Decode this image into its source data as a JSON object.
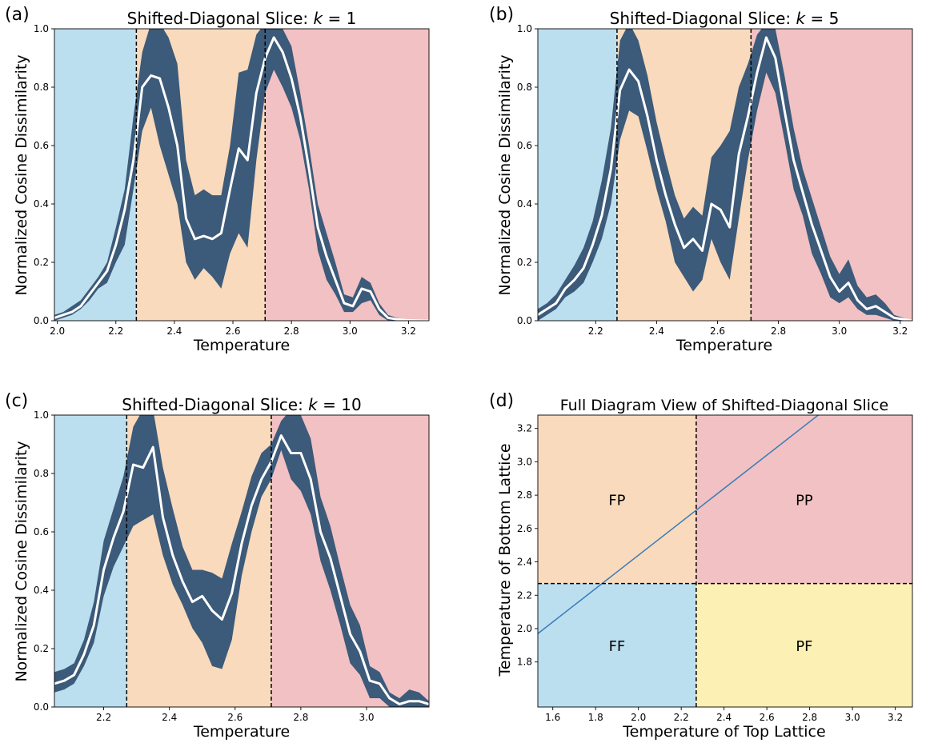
{
  "colors": {
    "ferro": "#bcdff0",
    "frustrated": "#f9dabc",
    "para": "#f2c1c3",
    "pf": "#fcf0b4",
    "band": "#3c5a79",
    "mean": "#ffffff",
    "diag_line": "#3a7cb8",
    "dashed": "#000000"
  },
  "chart_data": [
    {
      "panel_label": "(a)",
      "type": "area",
      "title": "Shifted-Diagonal Slice: ",
      "title_k": "k",
      "title_eq": " = 1",
      "xlabel": "Temperature",
      "ylabel": "Normalized Cosine Dissimilarity",
      "xlim": [
        1.99,
        3.27
      ],
      "ylim": [
        0,
        1.0
      ],
      "xticks": [
        2.0,
        2.2,
        2.4,
        2.6,
        2.8,
        3.0,
        3.2
      ],
      "yticks": [
        0.0,
        0.2,
        0.4,
        0.6,
        0.8,
        1.0
      ],
      "xtick_labels": [
        "2.0",
        "2.2",
        "2.4",
        "2.6",
        "2.8",
        "3.0",
        "3.2"
      ],
      "ytick_labels": [
        "0.0",
        "0.2",
        "0.4",
        "0.6",
        "0.8",
        "1.0"
      ],
      "regions": [
        {
          "from": 1.99,
          "to": 2.27,
          "color": "ferro"
        },
        {
          "from": 2.27,
          "to": 2.71,
          "color": "frustrated"
        },
        {
          "from": 2.71,
          "to": 3.27,
          "color": "para"
        }
      ],
      "vlines": [
        2.27,
        2.71
      ],
      "x": [
        1.99,
        2.02,
        2.05,
        2.08,
        2.11,
        2.14,
        2.17,
        2.2,
        2.23,
        2.26,
        2.29,
        2.32,
        2.35,
        2.38,
        2.41,
        2.44,
        2.47,
        2.5,
        2.53,
        2.56,
        2.59,
        2.62,
        2.65,
        2.68,
        2.71,
        2.74,
        2.77,
        2.8,
        2.83,
        2.86,
        2.89,
        2.92,
        2.95,
        2.98,
        3.01,
        3.04,
        3.07,
        3.1,
        3.13,
        3.16,
        3.19,
        3.22,
        3.25,
        3.27
      ],
      "mean": [
        0.01,
        0.02,
        0.03,
        0.05,
        0.09,
        0.13,
        0.17,
        0.26,
        0.38,
        0.55,
        0.8,
        0.84,
        0.83,
        0.73,
        0.6,
        0.35,
        0.28,
        0.29,
        0.28,
        0.3,
        0.45,
        0.59,
        0.55,
        0.78,
        0.9,
        0.97,
        0.92,
        0.83,
        0.7,
        0.52,
        0.32,
        0.22,
        0.14,
        0.06,
        0.05,
        0.11,
        0.1,
        0.04,
        0.01,
        0.005,
        0.002,
        0.001,
        0.0,
        0.0
      ],
      "lower": [
        0.0,
        0.01,
        0.02,
        0.04,
        0.07,
        0.11,
        0.13,
        0.2,
        0.26,
        0.45,
        0.65,
        0.73,
        0.6,
        0.5,
        0.4,
        0.2,
        0.14,
        0.18,
        0.15,
        0.11,
        0.23,
        0.3,
        0.25,
        0.55,
        0.78,
        0.86,
        0.8,
        0.73,
        0.62,
        0.45,
        0.24,
        0.14,
        0.09,
        0.03,
        0.03,
        0.06,
        0.07,
        0.02,
        0.0,
        0.0,
        0.0,
        0.0,
        0.0,
        0.0
      ],
      "upper": [
        0.02,
        0.03,
        0.05,
        0.07,
        0.11,
        0.15,
        0.2,
        0.32,
        0.45,
        0.7,
        0.92,
        1.02,
        1.02,
        0.97,
        0.88,
        0.55,
        0.43,
        0.45,
        0.43,
        0.43,
        0.6,
        0.85,
        0.86,
        0.98,
        1.02,
        1.02,
        1.0,
        0.94,
        0.78,
        0.6,
        0.4,
        0.3,
        0.2,
        0.09,
        0.08,
        0.15,
        0.13,
        0.06,
        0.02,
        0.01,
        0.005,
        0.002,
        0.0,
        0.0
      ]
    },
    {
      "panel_label": "(b)",
      "type": "area",
      "title": "Shifted-Diagonal Slice: ",
      "title_k": "k",
      "title_eq": " = 5",
      "xlabel": "Temperature",
      "ylabel": "Normalized Cosine Dissimilarity",
      "xlim": [
        2.01,
        3.24
      ],
      "ylim": [
        0,
        1.0
      ],
      "xticks": [
        2.2,
        2.4,
        2.6,
        2.8,
        3.0,
        3.2
      ],
      "yticks": [
        0.0,
        0.2,
        0.4,
        0.6,
        0.8,
        1.0
      ],
      "xtick_labels": [
        "2.2",
        "2.4",
        "2.6",
        "2.8",
        "3.0",
        "3.2"
      ],
      "ytick_labels": [
        "0.0",
        "0.2",
        "0.4",
        "0.6",
        "0.8",
        "1.0"
      ],
      "regions": [
        {
          "from": 2.01,
          "to": 2.27,
          "color": "ferro"
        },
        {
          "from": 2.27,
          "to": 2.71,
          "color": "frustrated"
        },
        {
          "from": 2.71,
          "to": 3.24,
          "color": "para"
        }
      ],
      "vlines": [
        2.27,
        2.71
      ],
      "x": [
        2.01,
        2.04,
        2.07,
        2.1,
        2.13,
        2.16,
        2.19,
        2.22,
        2.25,
        2.28,
        2.31,
        2.34,
        2.37,
        2.4,
        2.43,
        2.46,
        2.49,
        2.52,
        2.55,
        2.58,
        2.61,
        2.64,
        2.67,
        2.7,
        2.73,
        2.76,
        2.79,
        2.82,
        2.85,
        2.88,
        2.91,
        2.94,
        2.97,
        3.0,
        3.03,
        3.06,
        3.09,
        3.12,
        3.15,
        3.18,
        3.21,
        3.24
      ],
      "mean": [
        0.02,
        0.04,
        0.06,
        0.11,
        0.14,
        0.18,
        0.26,
        0.36,
        0.52,
        0.79,
        0.86,
        0.82,
        0.7,
        0.55,
        0.43,
        0.33,
        0.25,
        0.28,
        0.24,
        0.4,
        0.38,
        0.32,
        0.57,
        0.7,
        0.85,
        0.97,
        0.9,
        0.72,
        0.55,
        0.44,
        0.33,
        0.24,
        0.15,
        0.1,
        0.13,
        0.07,
        0.04,
        0.05,
        0.03,
        0.01,
        0.005,
        0.0
      ],
      "lower": [
        0.0,
        0.02,
        0.04,
        0.08,
        0.1,
        0.13,
        0.2,
        0.28,
        0.4,
        0.62,
        0.72,
        0.7,
        0.58,
        0.45,
        0.34,
        0.2,
        0.15,
        0.1,
        0.14,
        0.28,
        0.2,
        0.14,
        0.35,
        0.55,
        0.72,
        0.85,
        0.78,
        0.62,
        0.45,
        0.36,
        0.23,
        0.16,
        0.08,
        0.06,
        0.08,
        0.04,
        0.02,
        0.02,
        0.01,
        0.0,
        0.0,
        0.0
      ],
      "upper": [
        0.04,
        0.06,
        0.09,
        0.14,
        0.19,
        0.25,
        0.34,
        0.48,
        0.66,
        0.96,
        1.02,
        0.96,
        0.84,
        0.68,
        0.55,
        0.43,
        0.35,
        0.39,
        0.36,
        0.56,
        0.6,
        0.65,
        0.8,
        0.88,
        0.98,
        1.02,
        1.0,
        0.84,
        0.66,
        0.52,
        0.42,
        0.32,
        0.22,
        0.16,
        0.21,
        0.12,
        0.08,
        0.09,
        0.06,
        0.02,
        0.01,
        0.0
      ]
    },
    {
      "panel_label": "(c)",
      "type": "area",
      "title": "Shifted-Diagonal Slice: ",
      "title_k": "k",
      "title_eq": " = 10",
      "xlabel": "Temperature",
      "ylabel": "Normalized Cosine Dissimilarity",
      "xlim": [
        2.05,
        3.19
      ],
      "ylim": [
        0,
        1.0
      ],
      "xticks": [
        2.2,
        2.4,
        2.6,
        2.8,
        3.0
      ],
      "yticks": [
        0.0,
        0.2,
        0.4,
        0.6,
        0.8,
        1.0
      ],
      "xtick_labels": [
        "2.2",
        "2.4",
        "2.6",
        "2.8",
        "3.0"
      ],
      "ytick_labels": [
        "0.0",
        "0.2",
        "0.4",
        "0.6",
        "0.8",
        "1.0"
      ],
      "regions": [
        {
          "from": 2.05,
          "to": 2.27,
          "color": "ferro"
        },
        {
          "from": 2.27,
          "to": 2.71,
          "color": "frustrated"
        },
        {
          "from": 2.71,
          "to": 3.19,
          "color": "para"
        }
      ],
      "vlines": [
        2.27,
        2.71
      ],
      "x": [
        2.05,
        2.08,
        2.11,
        2.14,
        2.17,
        2.2,
        2.23,
        2.26,
        2.29,
        2.32,
        2.35,
        2.38,
        2.41,
        2.44,
        2.47,
        2.5,
        2.53,
        2.56,
        2.59,
        2.62,
        2.65,
        2.68,
        2.71,
        2.74,
        2.77,
        2.8,
        2.83,
        2.86,
        2.89,
        2.92,
        2.95,
        2.98,
        3.01,
        3.04,
        3.07,
        3.1,
        3.13,
        3.16,
        3.19
      ],
      "mean": [
        0.08,
        0.09,
        0.11,
        0.18,
        0.28,
        0.47,
        0.58,
        0.67,
        0.83,
        0.82,
        0.89,
        0.65,
        0.52,
        0.43,
        0.36,
        0.38,
        0.33,
        0.3,
        0.39,
        0.56,
        0.69,
        0.78,
        0.84,
        0.93,
        0.87,
        0.87,
        0.78,
        0.6,
        0.51,
        0.38,
        0.25,
        0.19,
        0.09,
        0.08,
        0.03,
        0.01,
        0.02,
        0.02,
        0.01
      ],
      "lower": [
        0.05,
        0.06,
        0.08,
        0.14,
        0.22,
        0.38,
        0.48,
        0.55,
        0.62,
        0.64,
        0.66,
        0.52,
        0.42,
        0.35,
        0.27,
        0.22,
        0.14,
        0.13,
        0.23,
        0.45,
        0.6,
        0.72,
        0.78,
        0.88,
        0.78,
        0.74,
        0.66,
        0.5,
        0.4,
        0.28,
        0.15,
        0.11,
        0.03,
        0.03,
        0.0,
        0.0,
        0.0,
        0.0,
        0.0
      ],
      "upper": [
        0.12,
        0.13,
        0.15,
        0.23,
        0.36,
        0.57,
        0.68,
        0.79,
        0.96,
        1.02,
        1.02,
        0.82,
        0.68,
        0.55,
        0.47,
        0.47,
        0.46,
        0.44,
        0.56,
        0.67,
        0.79,
        0.87,
        0.9,
        0.98,
        1.02,
        1.0,
        0.92,
        0.72,
        0.62,
        0.48,
        0.35,
        0.28,
        0.14,
        0.12,
        0.05,
        0.03,
        0.06,
        0.05,
        0.02
      ]
    },
    {
      "panel_label": "(d)",
      "type": "diagram",
      "title": "Full Diagram View of Shifted-Diagonal Slice",
      "xlabel": "Temperature of Top Lattice",
      "ylabel": "Temperature of Bottom Lattice",
      "xlim": [
        1.53,
        3.28
      ],
      "ylim": [
        1.53,
        3.28
      ],
      "xticks": [
        1.6,
        1.8,
        2.0,
        2.2,
        2.4,
        2.6,
        2.8,
        3.0,
        3.2
      ],
      "yticks": [
        1.8,
        2.0,
        2.2,
        2.4,
        2.6,
        2.8,
        3.0,
        3.2
      ],
      "xtick_labels": [
        "1.6",
        "1.8",
        "2.0",
        "2.2",
        "2.4",
        "2.6",
        "2.8",
        "3.0",
        "3.2"
      ],
      "ytick_labels": [
        "1.8",
        "2.0",
        "2.2",
        "2.4",
        "2.6",
        "2.8",
        "3.0",
        "3.2"
      ],
      "critical_temperature": 2.27,
      "quadrants": [
        {
          "label": "FP",
          "x": [
            1.53,
            2.27
          ],
          "y": [
            2.27,
            3.28
          ],
          "color": "frustrated"
        },
        {
          "label": "PP",
          "x": [
            2.27,
            3.28
          ],
          "y": [
            2.27,
            3.28
          ],
          "color": "para"
        },
        {
          "label": "FF",
          "x": [
            1.53,
            2.27
          ],
          "y": [
            1.53,
            2.27
          ],
          "color": "ferro"
        },
        {
          "label": "PF",
          "x": [
            2.27,
            3.28
          ],
          "y": [
            1.53,
            2.27
          ],
          "color": "pf"
        }
      ],
      "slice_line": {
        "x": [
          1.53,
          2.85
        ],
        "y": [
          1.97,
          3.29
        ]
      }
    }
  ]
}
